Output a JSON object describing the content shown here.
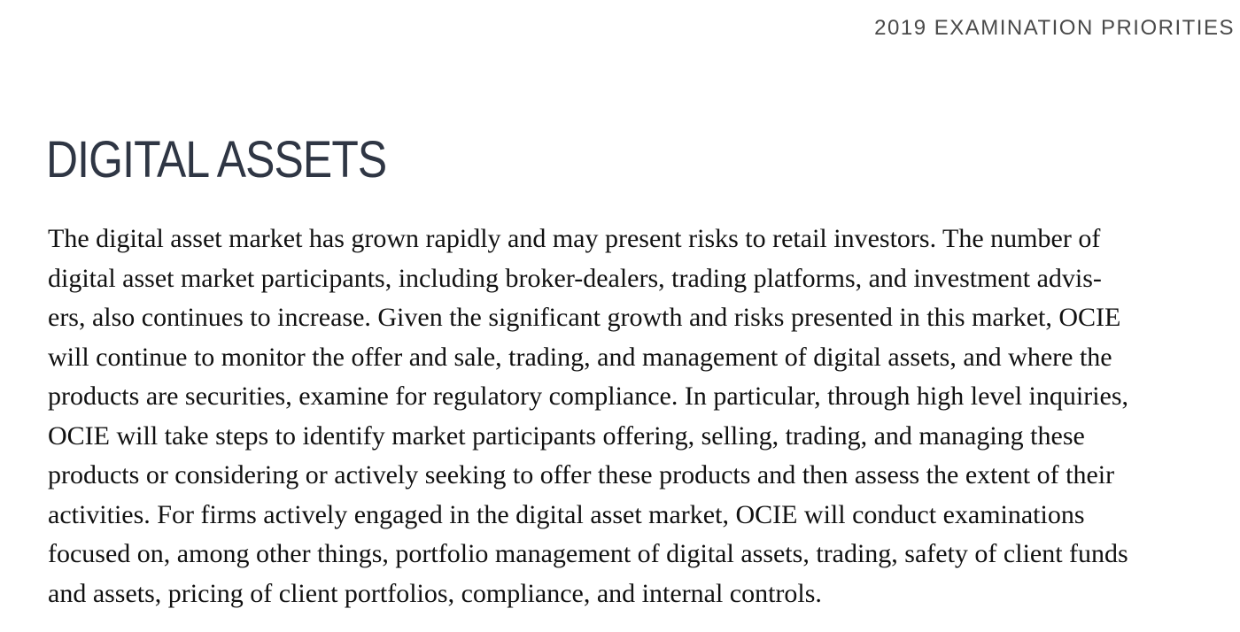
{
  "header": {
    "running_title": "2019 EXAMINATION PRIORITIES"
  },
  "section": {
    "title": "DIGITAL ASSETS",
    "lines": [
      "The digital asset market has grown rapidly and may present risks to retail investors. The number of",
      "digital asset market participants, including broker-dealers, trading platforms, and investment advis-",
      "ers, also continues to increase. Given the significant growth and risks presented in this market, OCIE",
      "will continue to monitor the offer and sale, trading, and management of digital assets, and where the",
      "products are securities, examine for regulatory compliance. In particular, through high level inquiries,",
      "OCIE will take steps to identify market participants offering, selling, trading, and managing these",
      "products or considering or actively seeking to offer these products and then assess the extent of their",
      "activities. For firms actively engaged in the digital asset market, OCIE will conduct examinations",
      "focused on, among other things, portfolio management of digital assets, trading, safety of client funds",
      "and assets, pricing of client portfolios, compliance, and internal controls."
    ]
  }
}
